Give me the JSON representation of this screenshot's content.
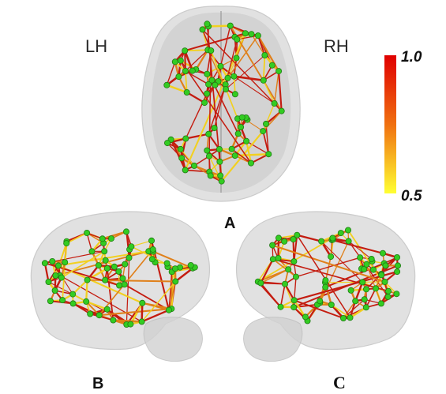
{
  "labels": {
    "left_hemisphere": "LH",
    "right_hemisphere": "RH",
    "panel_a": "A",
    "panel_b": "B",
    "panel_c": "C"
  },
  "colorbar": {
    "max_label": "1.0",
    "min_label": "0.5",
    "max_color": "#e00000",
    "min_color": "#ffff33"
  },
  "colors": {
    "edge_strong": "#c41c10",
    "edge_mid": "#e0801a",
    "edge_weak": "#f2d020",
    "node": "#33cc22",
    "brain_shell": "#d6d6d6"
  }
}
